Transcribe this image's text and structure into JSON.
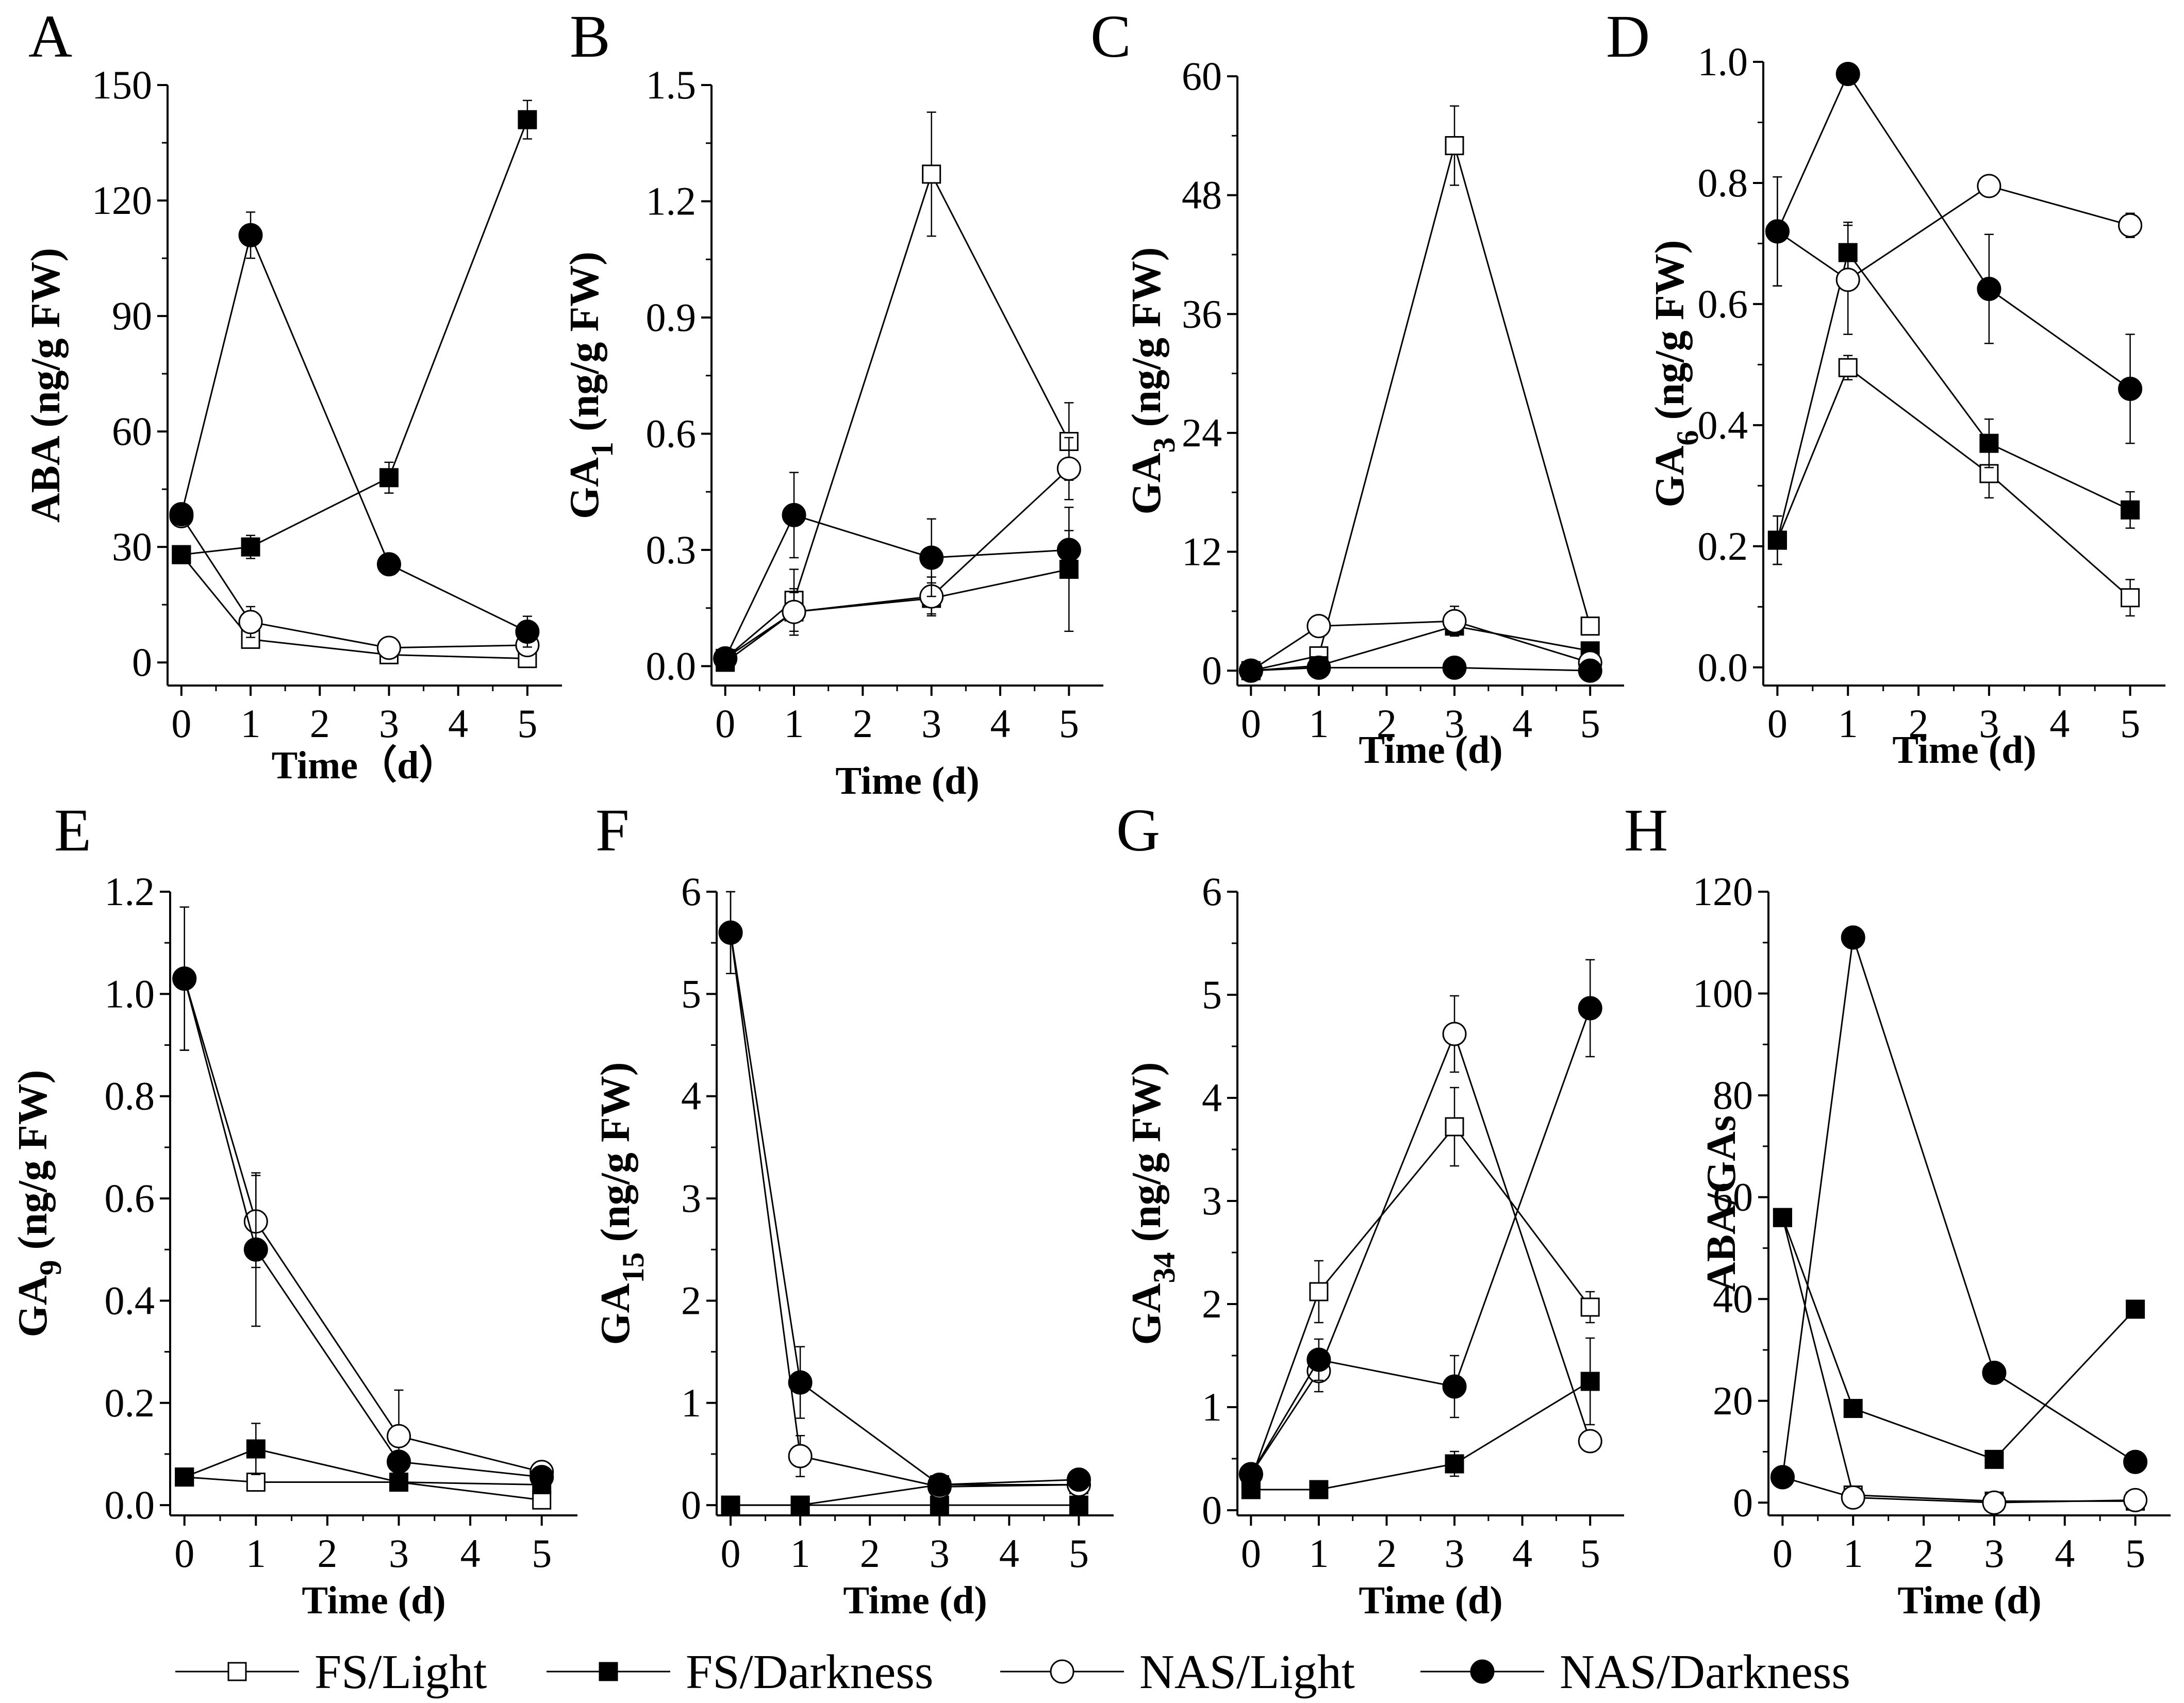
{
  "figure": {
    "legend": {
      "entries": [
        {
          "label": "FS/Light",
          "marker": "square",
          "fill": "#ffffff"
        },
        {
          "label": "FS/Darkness",
          "marker": "square",
          "fill": "#000000"
        },
        {
          "label": "NAS/Light",
          "marker": "circle",
          "fill": "#ffffff"
        },
        {
          "label": "NAS/Darkness",
          "marker": "circle",
          "fill": "#000000"
        }
      ]
    }
  },
  "chart_data": [
    {
      "panel": "A",
      "type": "line",
      "ylabel_main": "ABA (ng/g FW)",
      "ylabel_sub": "",
      "xlabel": "Time（d）",
      "x": [
        0,
        1,
        3,
        5
      ],
      "xlim": [
        -0.2,
        5.5
      ],
      "xticks": [
        0,
        1,
        2,
        3,
        4,
        5
      ],
      "ylim": [
        -6,
        150
      ],
      "yticks": [
        0,
        30,
        60,
        90,
        120,
        150
      ],
      "ytick_labels": [
        "0",
        "30",
        "60",
        "90",
        "120",
        "150"
      ],
      "series": [
        {
          "name": "FS/Light",
          "values": [
            28,
            6,
            2,
            1
          ],
          "errors": [
            2,
            2,
            1,
            1
          ]
        },
        {
          "name": "FS/Darkness",
          "values": [
            28,
            30,
            48,
            141
          ],
          "errors": [
            2,
            3,
            4,
            5
          ]
        },
        {
          "name": "NAS/Light",
          "values": [
            38,
            10.5,
            3.8,
            4.5
          ],
          "errors": [
            2,
            4,
            1,
            1
          ]
        },
        {
          "name": "NAS/Darkness",
          "values": [
            38.5,
            111,
            25.5,
            8
          ],
          "errors": [
            2,
            6,
            2,
            4
          ]
        }
      ]
    },
    {
      "panel": "B",
      "type": "line",
      "ylabel_main": "GA",
      "ylabel_sub": "1",
      "ylabel_tail": " (ng/g  FW)",
      "xlabel": "Time (d)",
      "x": [
        0,
        1,
        3,
        5
      ],
      "xlim": [
        -0.2,
        5.5
      ],
      "xticks": [
        0,
        1,
        2,
        3,
        4,
        5
      ],
      "ylim": [
        -0.05,
        1.5
      ],
      "yticks": [
        0,
        0.3,
        0.6,
        0.9,
        1.2,
        1.5
      ],
      "ytick_labels": [
        "0.0",
        "0.3",
        "0.6",
        "0.9",
        "1.2",
        "1.5"
      ],
      "series": [
        {
          "name": "FS/Light",
          "values": [
            0.02,
            0.17,
            1.27,
            0.58
          ],
          "errors": [
            0.01,
            0.08,
            0.16,
            0.1
          ]
        },
        {
          "name": "FS/Darkness",
          "values": [
            0.01,
            0.14,
            0.175,
            0.25
          ],
          "errors": [
            0.01,
            0.05,
            0.04,
            0.16
          ]
        },
        {
          "name": "NAS/Light",
          "values": [
            0.02,
            0.14,
            0.18,
            0.51
          ],
          "errors": [
            0.01,
            0.06,
            0.05,
            0.08
          ]
        },
        {
          "name": "NAS/Darkness",
          "values": [
            0.02,
            0.39,
            0.28,
            0.3
          ],
          "errors": [
            0.01,
            0.11,
            0.1,
            0.05
          ]
        }
      ]
    },
    {
      "panel": "C",
      "type": "line",
      "ylabel_main": "GA",
      "ylabel_sub": "3",
      "ylabel_tail": " (ng/g  FW)",
      "xlabel": "Time (d)",
      "x": [
        0,
        1,
        3,
        5
      ],
      "xlim": [
        -0.2,
        5.5
      ],
      "xticks": [
        0,
        1,
        2,
        3,
        4,
        5
      ],
      "ylim": [
        -1.5,
        60
      ],
      "yticks": [
        0,
        12,
        24,
        36,
        48,
        60
      ],
      "ytick_labels": [
        "0",
        "12",
        "24",
        "36",
        "48",
        "60"
      ],
      "series": [
        {
          "name": "FS/Light",
          "values": [
            0,
            1.5,
            53,
            4.5
          ],
          "errors": [
            0.2,
            0.5,
            4,
            0.5
          ]
        },
        {
          "name": "FS/Darkness",
          "values": [
            0,
            0.5,
            4.5,
            2
          ],
          "errors": [
            0.2,
            0.3,
            1,
            0.5
          ]
        },
        {
          "name": "NAS/Light",
          "values": [
            0,
            4.5,
            5,
            0.8
          ],
          "errors": [
            0.2,
            1,
            1.5,
            0.3
          ]
        },
        {
          "name": "NAS/Darkness",
          "values": [
            0,
            0.3,
            0.3,
            0
          ],
          "errors": [
            0.1,
            0.1,
            0.1,
            0.1
          ]
        }
      ]
    },
    {
      "panel": "D",
      "type": "line",
      "ylabel_main": "GA",
      "ylabel_sub": "6",
      "ylabel_tail": " (ng/g  FW)",
      "xlabel": "Time (d)",
      "x": [
        0,
        1,
        3,
        5
      ],
      "xlim": [
        -0.2,
        5.5
      ],
      "xticks": [
        0,
        1,
        2,
        3,
        4,
        5
      ],
      "ylim": [
        -0.03,
        1.0
      ],
      "yticks": [
        0,
        0.2,
        0.4,
        0.6,
        0.8,
        1.0
      ],
      "ytick_labels": [
        "0.0",
        "0.2",
        "0.4",
        "0.6",
        "0.8",
        "1.0"
      ],
      "series": [
        {
          "name": "FS/Light",
          "values": [
            0.21,
            0.495,
            0.32,
            0.115
          ],
          "errors": [
            0.04,
            0.02,
            0.04,
            0.03
          ]
        },
        {
          "name": "FS/Darkness",
          "values": [
            0.21,
            0.685,
            0.37,
            0.26
          ],
          "errors": [
            0.04,
            0.05,
            0.04,
            0.03
          ]
        },
        {
          "name": "NAS/Light",
          "values": [
            0.72,
            0.64,
            0.795,
            0.73
          ],
          "errors": [
            0.09,
            0.09,
            0.01,
            0.02
          ]
        },
        {
          "name": "NAS/Darkness",
          "values": [
            0.72,
            0.98,
            0.625,
            0.46
          ],
          "errors": [
            0.09,
            0.01,
            0.09,
            0.09
          ]
        }
      ]
    },
    {
      "panel": "E",
      "type": "line",
      "ylabel_main": "GA",
      "ylabel_sub": "9",
      "ylabel_tail": "  (ng/g  FW)",
      "xlabel": "Time (d)",
      "x": [
        0,
        1,
        3,
        5
      ],
      "xlim": [
        -0.2,
        5.5
      ],
      "xticks": [
        0,
        1,
        2,
        3,
        4,
        5
      ],
      "ylim": [
        -0.02,
        1.2
      ],
      "yticks": [
        0,
        0.2,
        0.4,
        0.6,
        0.8,
        1.0,
        1.2
      ],
      "ytick_labels": [
        "0.0",
        "0.2",
        "0.4",
        "0.6",
        "0.8",
        "1.0",
        "1.2"
      ],
      "series": [
        {
          "name": "FS/Light",
          "values": [
            0.055,
            0.045,
            0.045,
            0.01
          ],
          "errors": [
            0.01,
            0.01,
            0.01,
            0.01
          ]
        },
        {
          "name": "FS/Darkness",
          "values": [
            0.055,
            0.11,
            0.045,
            0.04
          ],
          "errors": [
            0.01,
            0.05,
            0.01,
            0.01
          ]
        },
        {
          "name": "NAS/Light",
          "values": [
            1.03,
            0.555,
            0.135,
            0.065
          ],
          "errors": [
            0.14,
            0.09,
            0.09,
            0.01
          ]
        },
        {
          "name": "NAS/Darkness",
          "values": [
            1.03,
            0.5,
            0.085,
            0.055
          ],
          "errors": [
            0.14,
            0.15,
            0.02,
            0.01
          ]
        }
      ]
    },
    {
      "panel": "F",
      "type": "line",
      "ylabel_main": "GA",
      "ylabel_sub": "15",
      "ylabel_tail": "  (ng/g  FW)",
      "xlabel": "Time (d)",
      "x": [
        0,
        1,
        3,
        5
      ],
      "xlim": [
        -0.2,
        5.5
      ],
      "xticks": [
        0,
        1,
        2,
        3,
        4,
        5
      ],
      "ylim": [
        -0.1,
        6
      ],
      "yticks": [
        0,
        1,
        2,
        3,
        4,
        5,
        6
      ],
      "ytick_labels": [
        "0",
        "1",
        "2",
        "3",
        "4",
        "5",
        "6"
      ],
      "series": [
        {
          "name": "FS/Light",
          "values": [
            0,
            0,
            0.2,
            0.2
          ],
          "errors": [
            0.02,
            0.02,
            0.02,
            0.02
          ]
        },
        {
          "name": "FS/Darkness",
          "values": [
            0,
            0,
            0,
            0
          ],
          "errors": [
            0.02,
            0.02,
            0.02,
            0.02
          ]
        },
        {
          "name": "NAS/Light",
          "values": [
            5.6,
            0.48,
            0.18,
            0.2
          ],
          "errors": [
            0.4,
            0.2,
            0.05,
            0.05
          ]
        },
        {
          "name": "NAS/Darkness",
          "values": [
            5.6,
            1.2,
            0.2,
            0.25
          ],
          "errors": [
            0.4,
            0.35,
            0.05,
            0.05
          ]
        }
      ]
    },
    {
      "panel": "G",
      "type": "line",
      "ylabel_main": "GA",
      "ylabel_sub": "34",
      "ylabel_tail": " (ng/g  FW)",
      "xlabel": "Time (d)",
      "x": [
        0,
        1,
        3,
        5
      ],
      "xlim": [
        -0.2,
        5.5
      ],
      "xticks": [
        0,
        1,
        2,
        3,
        4,
        5
      ],
      "ylim": [
        -0.05,
        6
      ],
      "yticks": [
        0,
        1,
        2,
        3,
        4,
        5,
        6
      ],
      "ytick_labels": [
        "0",
        "1",
        "2",
        "3",
        "4",
        "5",
        "6"
      ],
      "series": [
        {
          "name": "FS/Light",
          "values": [
            0.3,
            2.12,
            3.72,
            1.97
          ],
          "errors": [
            0.05,
            0.3,
            0.38,
            0.15
          ]
        },
        {
          "name": "FS/Darkness",
          "values": [
            0.2,
            0.2,
            0.45,
            1.25
          ],
          "errors": [
            0.05,
            0.05,
            0.12,
            0.42
          ]
        },
        {
          "name": "NAS/Light",
          "values": [
            0.35,
            1.35,
            4.62,
            0.67
          ],
          "errors": [
            0.05,
            0.2,
            0.37,
            0.05
          ]
        },
        {
          "name": "NAS/Darkness",
          "values": [
            0.35,
            1.46,
            1.2,
            4.87
          ],
          "errors": [
            0.05,
            0.2,
            0.3,
            0.47
          ]
        }
      ]
    },
    {
      "panel": "H",
      "type": "line",
      "ylabel_main": "ABA/GAs",
      "ylabel_sub": "",
      "xlabel": "Time (d)",
      "x": [
        0,
        1,
        3,
        5
      ],
      "xlim": [
        -0.2,
        5.5
      ],
      "xticks": [
        0,
        1,
        2,
        3,
        4,
        5
      ],
      "ylim": [
        -2.5,
        120
      ],
      "yticks": [
        0,
        20,
        40,
        60,
        80,
        100,
        120
      ],
      "ytick_labels": [
        "0",
        "20",
        "40",
        "60",
        "80",
        "100",
        "120"
      ],
      "series": [
        {
          "name": "FS/Light",
          "values": [
            56,
            1.5,
            0.3,
            0.3
          ],
          "errors": [
            0,
            0,
            0,
            0
          ]
        },
        {
          "name": "FS/Darkness",
          "values": [
            56,
            18.5,
            8.5,
            38
          ],
          "errors": [
            0,
            0,
            0,
            0
          ]
        },
        {
          "name": "NAS/Light",
          "values": [
            5,
            1,
            0,
            0.5
          ],
          "errors": [
            0,
            0,
            0,
            0
          ]
        },
        {
          "name": "NAS/Darkness",
          "values": [
            5,
            111,
            25.5,
            8
          ],
          "errors": [
            0,
            0,
            0,
            0
          ]
        }
      ]
    }
  ]
}
